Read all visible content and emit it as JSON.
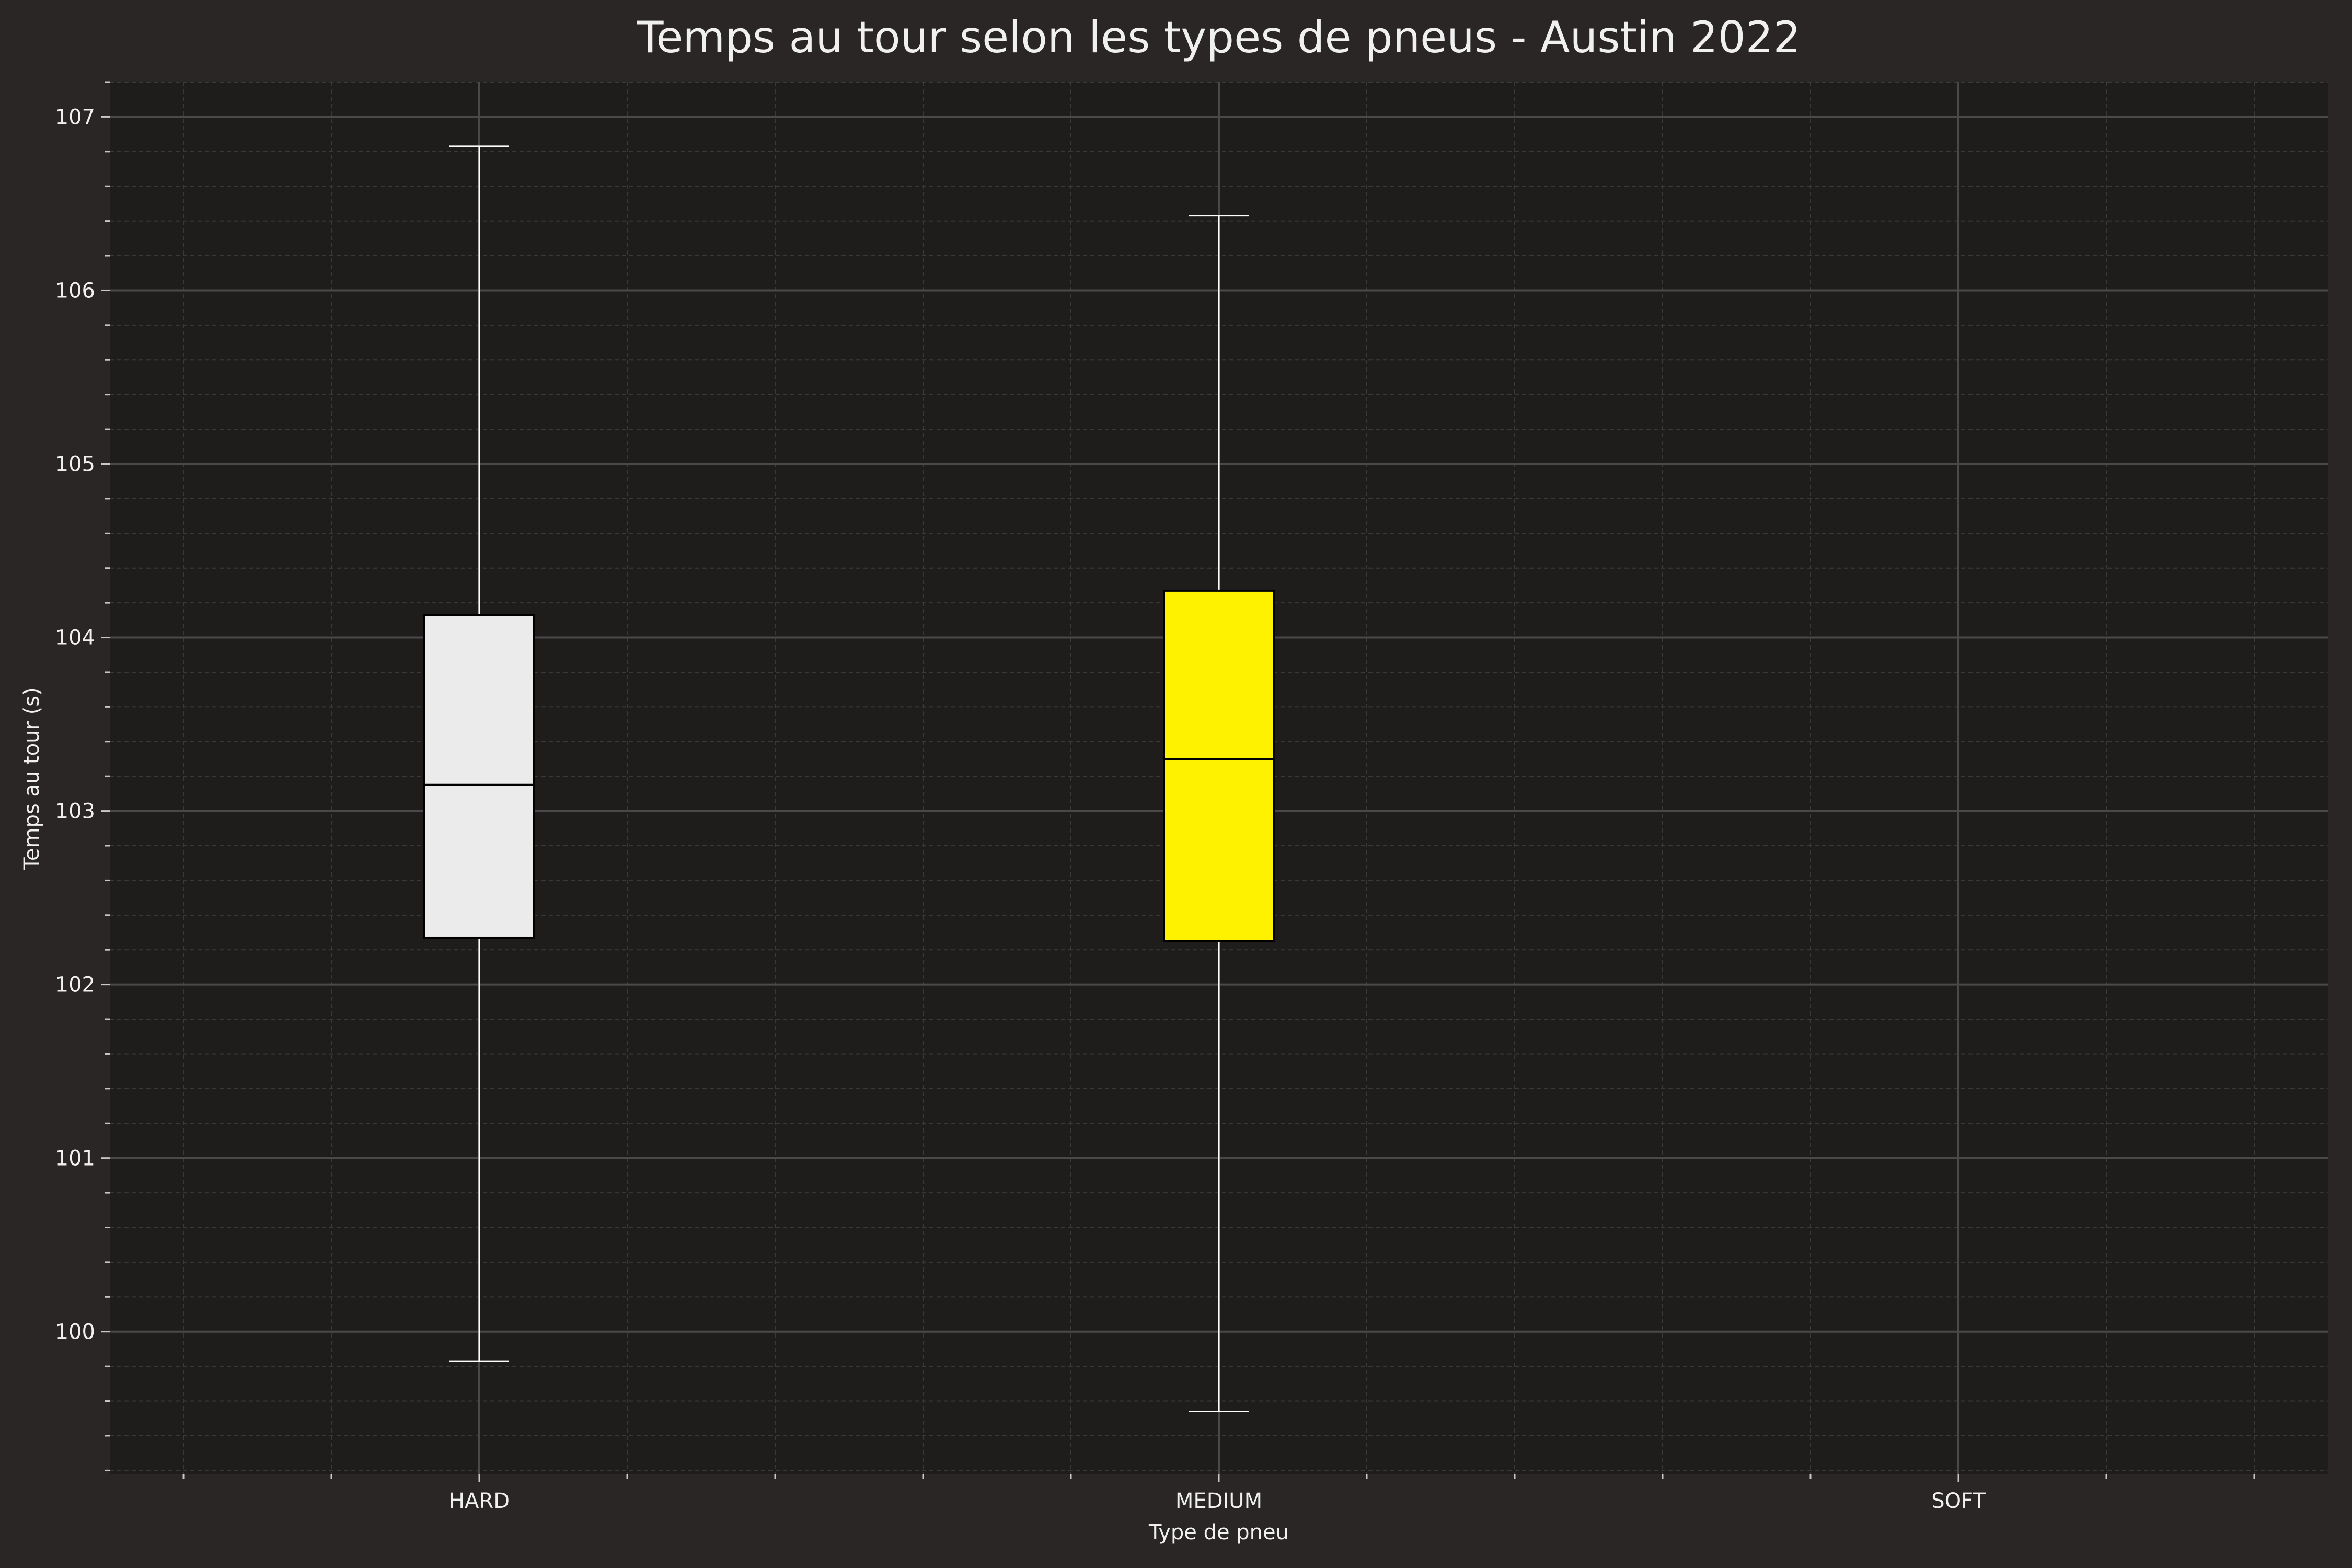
{
  "chart_data": {
    "type": "box",
    "title": "Temps au tour selon les types de pneus - Austin 2022",
    "xlabel": "Type de pneu",
    "ylabel": "Temps au tour (s)",
    "ylim": [
      99.18,
      107.2
    ],
    "yticks": [
      100,
      101,
      102,
      103,
      104,
      105,
      106,
      107
    ],
    "ytick_labels": [
      "100",
      "101",
      "102",
      "103",
      "104",
      "105",
      "106",
      "107"
    ],
    "grid": true,
    "categories": [
      "HARD",
      "MEDIUM",
      "SOFT"
    ],
    "series": [
      {
        "category": "HARD",
        "min": 99.83,
        "q1": 102.27,
        "median": 103.15,
        "q3": 104.13,
        "max": 106.83,
        "color": "#ebebeb"
      },
      {
        "category": "MEDIUM",
        "min": 99.54,
        "q1": 102.25,
        "median": 103.3,
        "q3": 104.27,
        "max": 106.43,
        "color": "#fff200"
      },
      {
        "category": "SOFT",
        "min": null,
        "q1": null,
        "median": null,
        "q3": null,
        "max": null,
        "color": "#cc0000"
      }
    ]
  }
}
